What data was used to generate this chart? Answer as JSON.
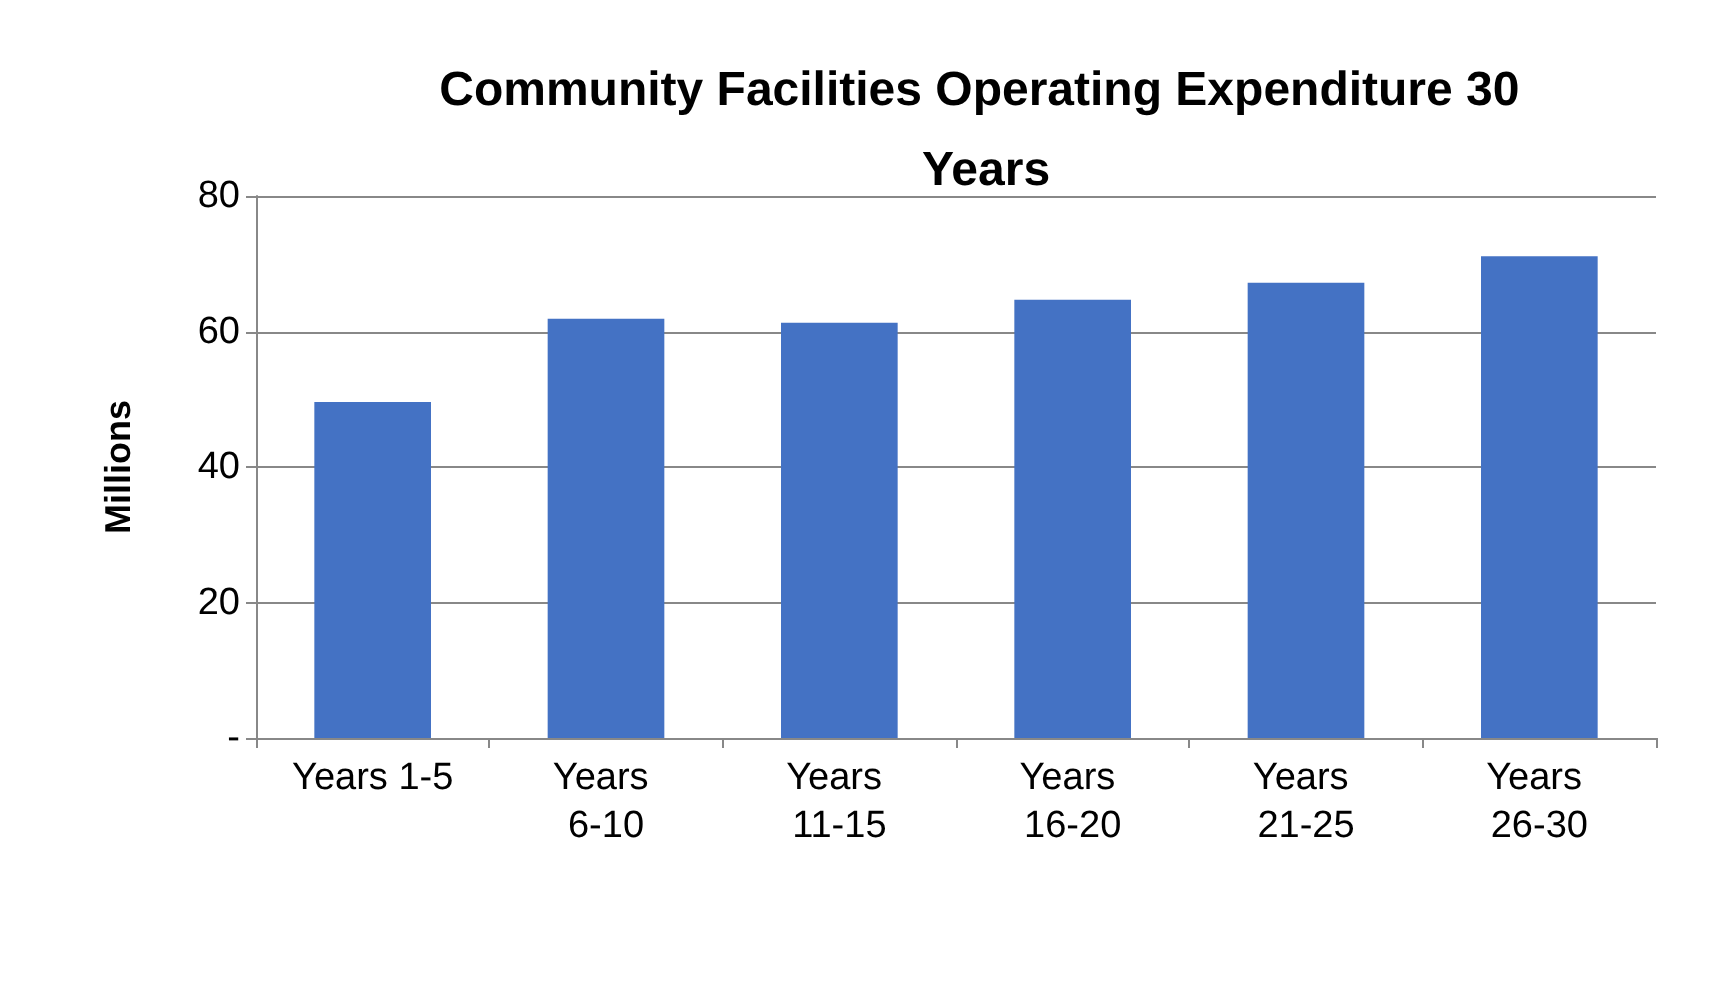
{
  "chart_data": {
    "type": "bar",
    "title": "Community Facilities Operating Expenditure 30 Years",
    "ylabel": "Millions",
    "categories": [
      "Years 1-5",
      "Years 6-10",
      "Years 11-15",
      "Years 16-20",
      "Years 21-25",
      "Years 26-30"
    ],
    "values": [
      49.6,
      61.9,
      61.3,
      64.7,
      67.2,
      71.1
    ],
    "color": "#4472c4",
    "ylim": [
      0,
      80
    ],
    "yticks": [
      {
        "value": 0,
        "label": "-"
      },
      20,
      40,
      60,
      80
    ],
    "grid": "y"
  }
}
